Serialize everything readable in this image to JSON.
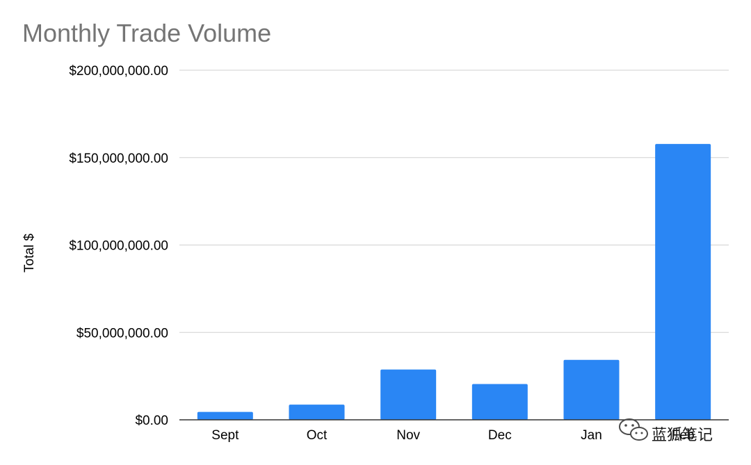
{
  "chart_data": {
    "type": "bar",
    "title": "Monthly Trade Volume",
    "xlabel": "",
    "ylabel": "Total $",
    "categories": [
      "Sept",
      "Oct",
      "Nov",
      "Dec",
      "Jan",
      "Feb"
    ],
    "series": [
      {
        "values": [
          4500000,
          8700000,
          28800000,
          20500000,
          34300000,
          157800000
        ],
        "color": "#2a86f4"
      }
    ],
    "ylim": [
      0,
      200000000
    ],
    "yticks": [
      0,
      50000000,
      100000000,
      150000000,
      200000000
    ],
    "ytick_labels": [
      "$0.00",
      "$50,000,000.00",
      "$100,000,000.00",
      "$150,000,000.00",
      "$200,000,000.00"
    ],
    "grid": true,
    "legend": "none"
  },
  "watermark": {
    "text": "蓝狐笔记",
    "icon": "wechat-icon"
  },
  "colors": {
    "bar": "#2a86f4",
    "grid": "#d0d0d0",
    "axis": "#333333",
    "title": "#757575"
  }
}
